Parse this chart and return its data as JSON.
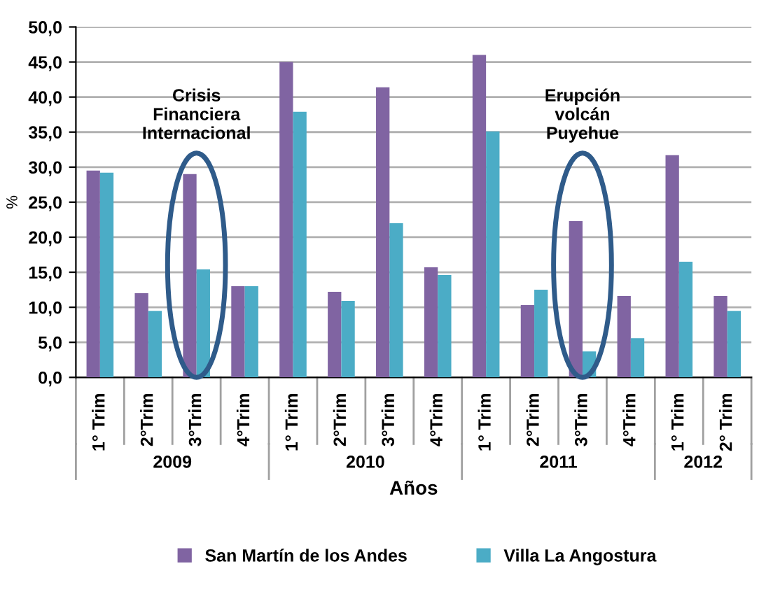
{
  "chart_data": {
    "type": "bar",
    "xlabel": "Años",
    "ylabel": "%",
    "categories": [
      "1° Trim",
      "2°Trim",
      "3°Trim",
      "4°Trim",
      "1° Trim",
      "2°Trim",
      "3°Trim",
      "4°Trim",
      "1° Trim",
      "2°Trim",
      "3°Trim",
      "4°Trim",
      "1° Trim",
      "2° Trim"
    ],
    "series": [
      {
        "name": "San Martín de los Andes",
        "color": "#8064a2",
        "values": [
          29.5,
          12.0,
          29.0,
          13.0,
          45.0,
          12.2,
          41.4,
          15.7,
          46.0,
          10.3,
          22.3,
          11.6,
          31.7,
          11.6
        ]
      },
      {
        "name": "Villa La Angostura",
        "color": "#4bacc6",
        "values": [
          29.2,
          9.5,
          15.4,
          13.0,
          37.9,
          10.9,
          22.0,
          14.6,
          35.1,
          12.5,
          3.7,
          5.6,
          16.5,
          9.5
        ]
      }
    ],
    "ylim": [
      0,
      50
    ],
    "yticks": [
      {
        "value": 0,
        "label": "0,0"
      },
      {
        "value": 5,
        "label": "5,0"
      },
      {
        "value": 10,
        "label": "10,0"
      },
      {
        "value": 15,
        "label": "15,0"
      },
      {
        "value": 20,
        "label": "20,0"
      },
      {
        "value": 25,
        "label": "25,0"
      },
      {
        "value": 30,
        "label": "30,0"
      },
      {
        "value": 35,
        "label": "35,0"
      },
      {
        "value": 40,
        "label": "40,0"
      },
      {
        "value": 45,
        "label": "45,0"
      },
      {
        "value": 50,
        "label": "50,0"
      }
    ],
    "grid": "y",
    "legend": "bottom",
    "annotations": [
      "Crisis\nFinanciera\nInternacional",
      "Erupción\nvolcán\nPuyehue",
      "2009",
      "2010",
      "2011",
      "2012"
    ]
  }
}
